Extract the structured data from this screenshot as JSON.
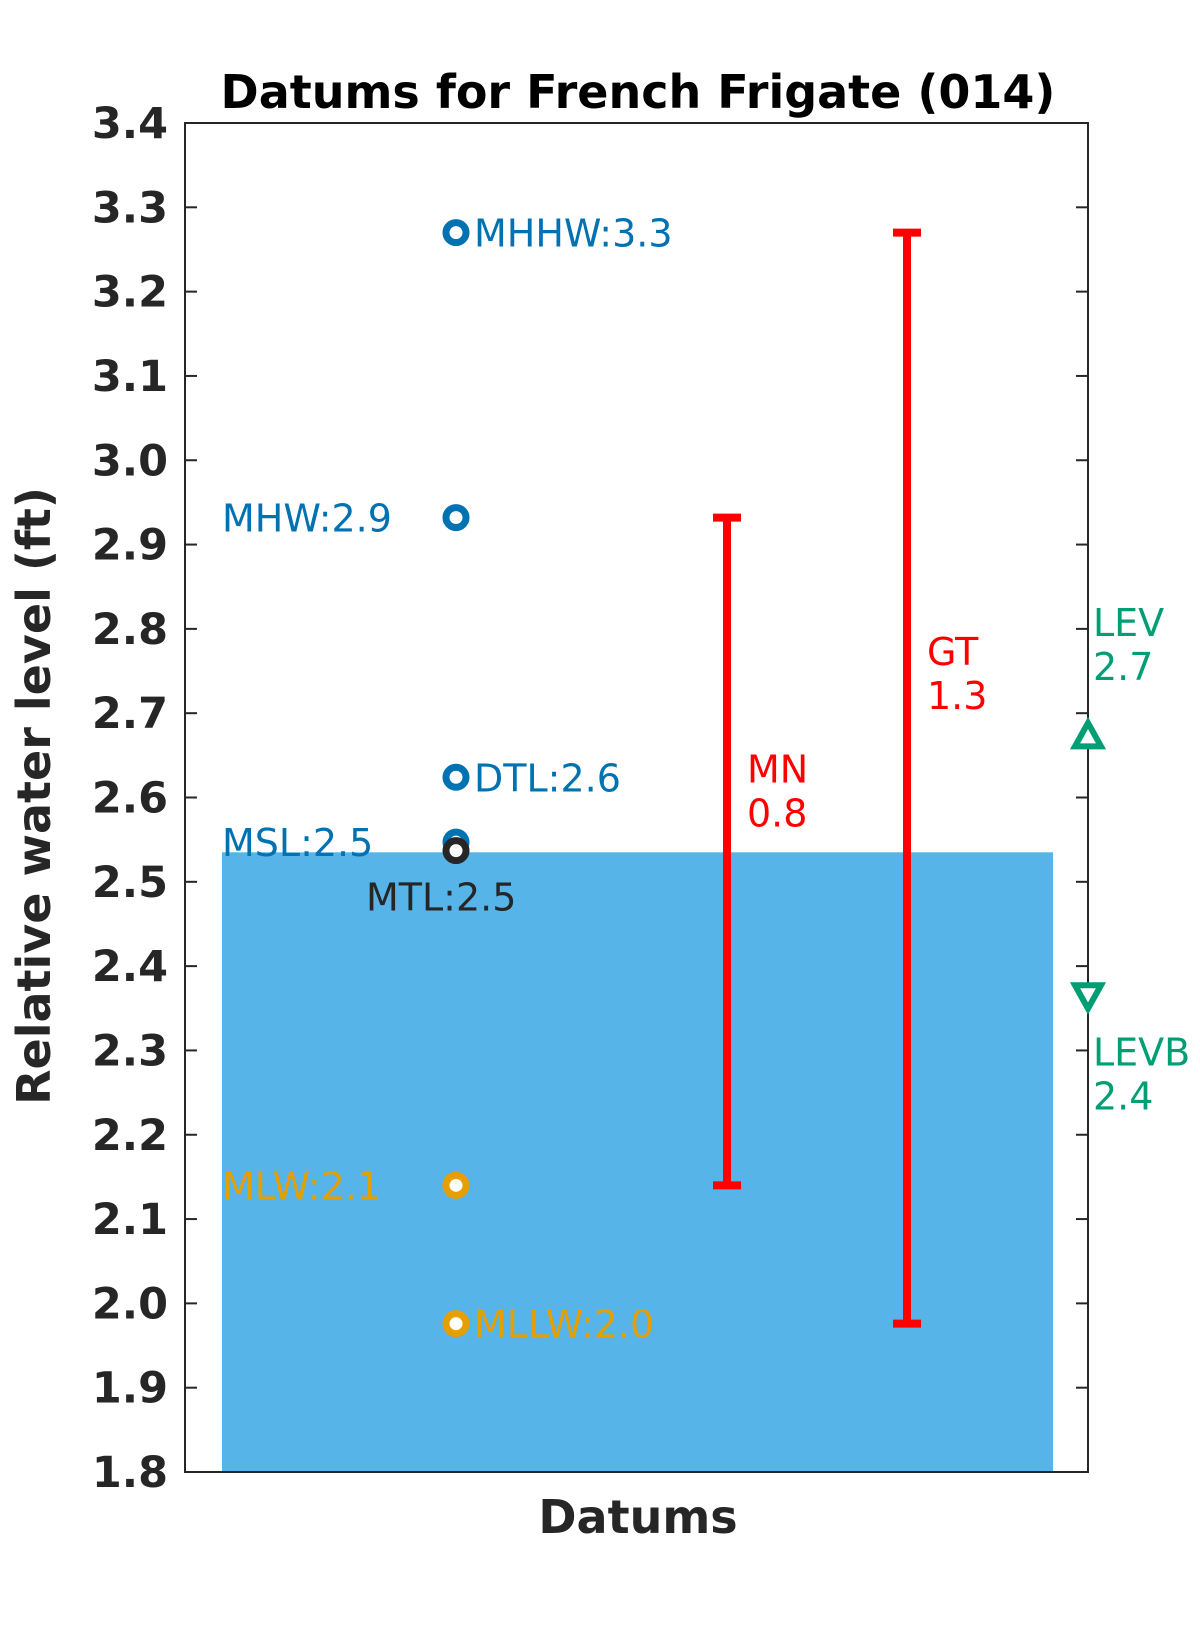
{
  "chart_data": {
    "type": "scatter",
    "title": "Datums for French Frigate (014)",
    "xlabel": "Datums",
    "ylabel": "Relative water level (ft)",
    "ylim": [
      1.8,
      3.4
    ],
    "yticks": [
      "1.8",
      "1.9",
      "2.0",
      "2.1",
      "2.2",
      "2.3",
      "2.4",
      "2.5",
      "2.6",
      "2.7",
      "2.8",
      "2.9",
      "3.0",
      "3.1",
      "3.2",
      "3.3",
      "3.4"
    ],
    "grid": false,
    "background_level": {
      "value": 2.535,
      "color": "#56b4e9"
    },
    "datums": [
      {
        "name": "MHHW",
        "value": 3.27,
        "label": "MHHW:3.3",
        "color": "#0072b2",
        "label_side": "right"
      },
      {
        "name": "MHW",
        "value": 2.932,
        "label": "MHW:2.9",
        "color": "#0072b2",
        "label_side": "left"
      },
      {
        "name": "DTL",
        "value": 2.624,
        "label": "DTL:2.6",
        "color": "#0072b2",
        "label_side": "right"
      },
      {
        "name": "MSL",
        "value": 2.547,
        "label": "MSL:2.5",
        "color": "#0072b2",
        "label_side": "left"
      },
      {
        "name": "MTL",
        "value": 2.537,
        "label": "MTL:2.5",
        "color": "#262626",
        "label_side": "below"
      },
      {
        "name": "MLW",
        "value": 2.14,
        "label": "MLW:2.1",
        "color": "#e69f00",
        "label_side": "left"
      },
      {
        "name": "MLLW",
        "value": 1.976,
        "label": "MLLW:2.0",
        "color": "#e69f00",
        "label_side": "right"
      }
    ],
    "ranges": [
      {
        "name": "MN",
        "low": 2.14,
        "high": 2.932,
        "label_line1": "MN",
        "label_line2": "0.8",
        "color": "#ff0000"
      },
      {
        "name": "GT",
        "low": 1.976,
        "high": 3.27,
        "label_line1": "GT",
        "label_line2": "1.3",
        "color": "#ff0000"
      }
    ],
    "extremes": [
      {
        "name": "LEV",
        "value": 2.673,
        "marker": "triangle-up",
        "label_line1": "LEV",
        "label_line2": "2.7",
        "color": "#009e73"
      },
      {
        "name": "LEVB",
        "value": 2.365,
        "marker": "triangle-down",
        "label_line1": "LEVB",
        "label_line2": "2.4",
        "color": "#009e73"
      }
    ]
  }
}
